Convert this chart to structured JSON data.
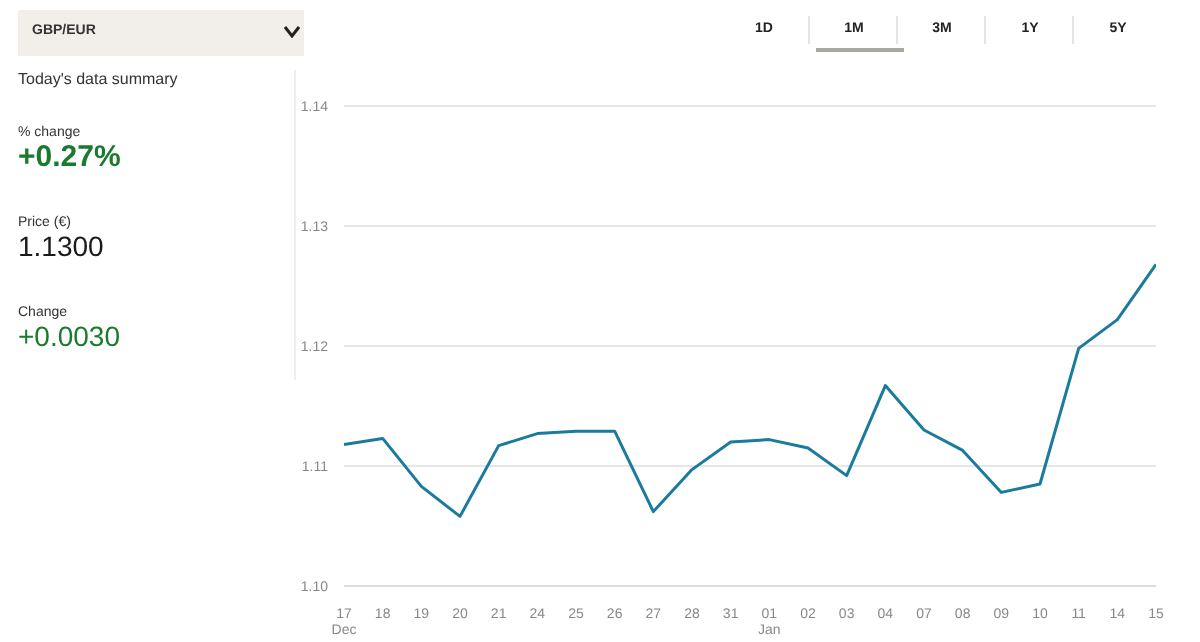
{
  "chart_data": [
    {
      "type": "other",
      "title": "GBP/EUR",
      "subtitle": "Today's data summary",
      "annotations": [
        "% change",
        "+0.27%",
        "Price (€)",
        "1.1300",
        "Change",
        "+0.0030"
      ]
    },
    {
      "type": "line",
      "annotations": [
        "1D",
        "1M",
        "3M",
        "1Y",
        "5Y"
      ],
      "categories": [
        "17\nDec",
        "18",
        "19",
        "20",
        "21",
        "24",
        "25",
        "26",
        "27",
        "28",
        "31",
        "01\nJan",
        "02",
        "03",
        "04",
        "07",
        "08",
        "09",
        "10",
        "11",
        "14",
        "15"
      ],
      "series": [
        {
          "color": "#1b7b9c",
          "values": [
            1.1118,
            1.1123,
            1.1083,
            1.1058,
            1.1117,
            1.1127,
            1.1129,
            1.1129,
            1.1062,
            1.1097,
            1.112,
            1.1122,
            1.1115,
            1.1092,
            1.1167,
            1.113,
            1.1113,
            1.1078,
            1.1085,
            1.1198,
            1.1222,
            1.1268
          ]
        }
      ],
      "ylim": [
        1.1,
        1.14
      ],
      "yticks": [
        {
          "value": 1.1,
          "label": "1.10"
        },
        {
          "value": 1.11,
          "label": "1.11"
        },
        {
          "value": 1.12,
          "label": "1.12"
        },
        {
          "value": 1.13,
          "label": "1.13"
        },
        {
          "value": 1.14,
          "label": "1.14"
        }
      ],
      "grid": "y",
      "marker": "none",
      "line_style": "solid"
    }
  ]
}
